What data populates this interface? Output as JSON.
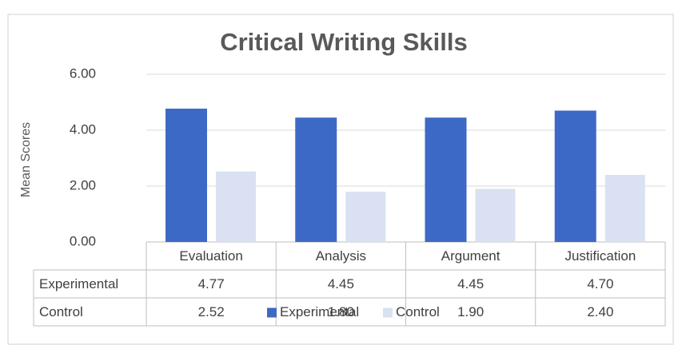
{
  "chart_data": {
    "type": "bar",
    "title": "Critical Writing Skills",
    "y_label": "Mean Scores",
    "categories": [
      "Evaluation",
      "Analysis",
      "Argument",
      "Justification"
    ],
    "series": [
      {
        "name": "Experimental",
        "color": "#3d69c6",
        "values": [
          4.77,
          4.45,
          4.45,
          4.7
        ],
        "value_labels": [
          "4.77",
          "4.45",
          "4.45",
          "4.70"
        ]
      },
      {
        "name": "Control",
        "color": "#d9e1f2",
        "values": [
          2.52,
          1.8,
          1.9,
          2.4
        ],
        "value_labels": [
          "2.52",
          "1.80",
          "1.90",
          "2.40"
        ]
      }
    ],
    "ylim": [
      0,
      6
    ],
    "yticks": [
      {
        "value": 0,
        "label": "0.00"
      },
      {
        "value": 2,
        "label": "2.00"
      },
      {
        "value": 4,
        "label": "4.00"
      },
      {
        "value": 6,
        "label": "6.00"
      }
    ],
    "grid": true,
    "legend": "bottom",
    "data_table": true
  }
}
